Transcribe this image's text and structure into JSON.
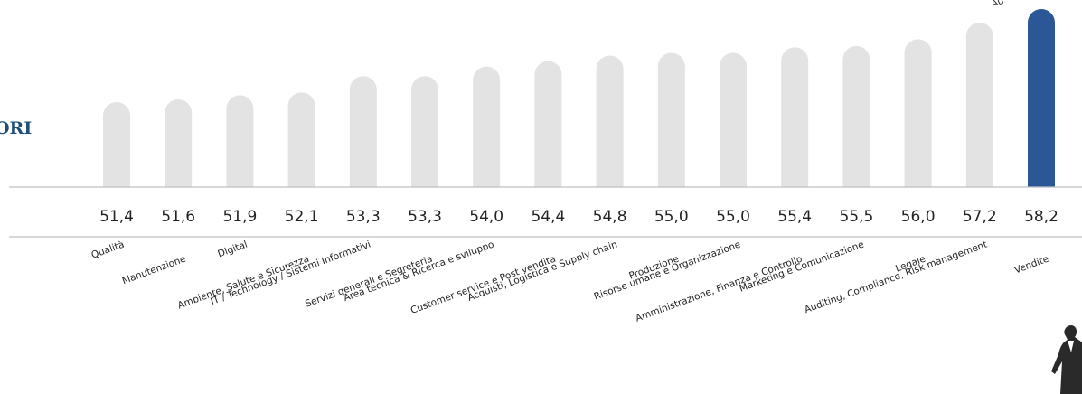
{
  "header": {
    "title_fragment": "ORI"
  },
  "chart_data": {
    "type": "bar",
    "title": "",
    "xlabel": "",
    "ylabel": "",
    "categories": [
      "Qualità",
      "Manutenzione",
      "Digital",
      "Ambiente, Salute e Sicurezza",
      "IT / Technology / Sistemi Informativi",
      "Servizi generali e Segreteria",
      "Area tecnica & Ricerca e sviluppo",
      "Customer service e Post vendita",
      "Acquisti, Logistica e Supply chain",
      "Produzione",
      "Risorse umane e Organizzazione",
      "Amministrazione, Finanza e Controllo",
      "Marketing e Comunicazione",
      "Legale",
      "Auditing, Compliance, Risk management",
      "Vendite"
    ],
    "values": [
      51.4,
      51.6,
      51.9,
      52.1,
      53.3,
      53.3,
      54.0,
      54.4,
      54.8,
      55.0,
      55.0,
      55.4,
      55.5,
      56.0,
      57.2,
      58.2
    ],
    "value_labels": [
      "51,4",
      "51,6",
      "51,9",
      "52,1",
      "53,3",
      "53,3",
      "54,0",
      "54,4",
      "54,8",
      "55,0",
      "55,0",
      "55,4",
      "55,5",
      "56,0",
      "57,2",
      "58,2"
    ],
    "highlight_index": 15,
    "partial_annotation": "Au",
    "colors": {
      "bar": "#e3e3e3",
      "highlight": "#2b5797",
      "axis": "#bfbfbf"
    },
    "grid": false,
    "legend": "none"
  }
}
